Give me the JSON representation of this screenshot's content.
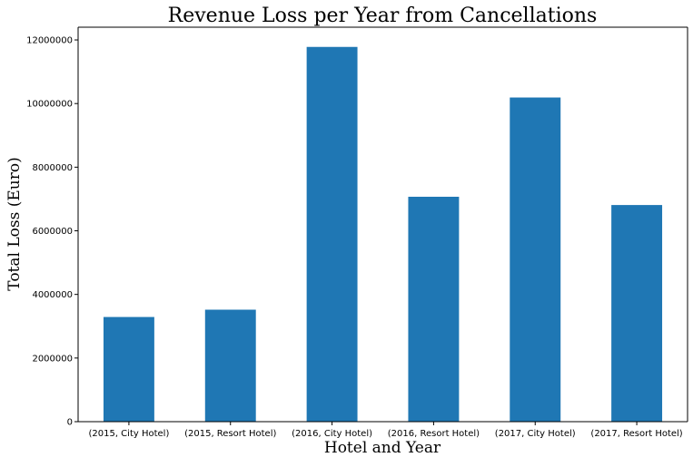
{
  "chart_data": {
    "type": "bar",
    "title": "Revenue Loss per Year from Cancellations",
    "xlabel": "Hotel and Year",
    "ylabel": "Total Loss (Euro)",
    "categories": [
      "(2015, City Hotel)",
      "(2015, Resort Hotel)",
      "(2016, City Hotel)",
      "(2016, Resort Hotel)",
      "(2017, City Hotel)",
      "(2017, Resort Hotel)"
    ],
    "values": [
      3290000,
      3520000,
      11780000,
      7070000,
      10190000,
      6810000
    ],
    "ylim": [
      0,
      12400000
    ],
    "yticks": [
      0,
      2000000,
      4000000,
      6000000,
      8000000,
      10000000,
      12000000
    ],
    "ytick_labels": [
      "0",
      "2000000",
      "4000000",
      "6000000",
      "8000000",
      "10000000",
      "12000000"
    ],
    "bar_color": "#1f77b4",
    "grid": false,
    "legend": "none"
  }
}
